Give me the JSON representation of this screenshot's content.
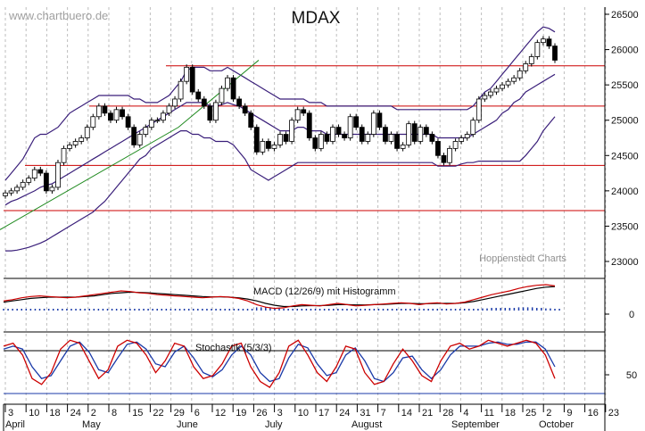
{
  "chart_data": [
    {
      "type": "candlestick",
      "title": "MDAX",
      "watermark": "www.chartbuero.de",
      "credit": "Hoppenstedt Charts",
      "ylim": [
        23000,
        26500
      ],
      "y_ticks": [
        "26500",
        "26000",
        "25500",
        "25000",
        "24500",
        "24000",
        "23500",
        "23000"
      ],
      "x_ticks": [
        "3",
        "10",
        "18",
        "24",
        "2",
        "8",
        "15",
        "22",
        "29",
        "6",
        "12",
        "19",
        "26",
        "3",
        "10",
        "17",
        "24",
        "31",
        "7",
        "14",
        "21",
        "28",
        "4",
        "11",
        "18",
        "25",
        "2",
        "9",
        "16",
        "23"
      ],
      "month_labels": [
        "April",
        "May",
        "June",
        "July",
        "August",
        "September",
        "October"
      ],
      "horizontal_lines": [
        25770,
        25200,
        24360,
        23720
      ],
      "series": [
        {
          "name": "close",
          "values": [
            23970,
            24000,
            24050,
            24120,
            24180,
            24300,
            24250,
            24000,
            24050,
            24400,
            24600,
            24650,
            24700,
            24750,
            24900,
            25050,
            25200,
            25100,
            25000,
            25150,
            25050,
            24900,
            24650,
            24800,
            24900,
            25000,
            25000,
            25100,
            25200,
            25300,
            25550,
            25750,
            25400,
            25300,
            25200,
            25000,
            25250,
            25450,
            25600,
            25300,
            25200,
            25100,
            24900,
            24550,
            24700,
            24600,
            24650,
            24800,
            24700,
            25000,
            25150,
            25100,
            24750,
            24600,
            24800,
            24700,
            24900,
            24800,
            24750,
            25050,
            24900,
            24700,
            24800,
            25100,
            24900,
            24700,
            24800,
            24600,
            24650,
            24950,
            24700,
            24900,
            24800,
            24700,
            24500,
            24400,
            24600,
            24700,
            24750,
            24800,
            25000,
            25300,
            25350,
            25400,
            25450,
            25500,
            25550,
            25600,
            25700,
            25800,
            25900,
            26100,
            26150,
            26050,
            25850
          ]
        },
        {
          "name": "bollinger_upper",
          "values": [
            24150,
            24250,
            24350,
            24450,
            24600,
            24750,
            24800,
            24800,
            24850,
            24900,
            25000,
            25100,
            25150,
            25200,
            25250,
            25300,
            25350,
            25350,
            25350,
            25350,
            25350,
            25350,
            25300,
            25300,
            25250,
            25250,
            25250,
            25300,
            25350,
            25450,
            25550,
            25700,
            25750,
            25750,
            25750,
            25700,
            25700,
            25700,
            25750,
            25700,
            25650,
            25600,
            25550,
            25500,
            25450,
            25400,
            25350,
            25300,
            25300,
            25300,
            25300,
            25300,
            25250,
            25250,
            25250,
            25200,
            25200,
            25200,
            25200,
            25200,
            25200,
            25200,
            25200,
            25200,
            25200,
            25200,
            25200,
            25150,
            25150,
            25150,
            25150,
            25150,
            25150,
            25150,
            25150,
            25150,
            25150,
            25150,
            25150,
            25150,
            25200,
            25300,
            25400,
            25450,
            25550,
            25650,
            25750,
            25850,
            25950,
            26050,
            26150,
            26250,
            26320,
            26300,
            26250
          ]
        },
        {
          "name": "bollinger_middle",
          "values": [
            23800,
            23850,
            23880,
            23920,
            23960,
            24000,
            24050,
            24080,
            24100,
            24150,
            24200,
            24250,
            24300,
            24350,
            24400,
            24450,
            24500,
            24550,
            24600,
            24650,
            24700,
            24750,
            24800,
            24850,
            24900,
            24950,
            25000,
            25050,
            25100,
            25150,
            25200,
            25250,
            25250,
            25250,
            25250,
            25200,
            25200,
            25220,
            25250,
            25220,
            25200,
            25150,
            25100,
            25050,
            25000,
            24950,
            24900,
            24850,
            24850,
            24850,
            24900,
            24900,
            24850,
            24850,
            24850,
            24800,
            24800,
            24800,
            24800,
            24800,
            24800,
            24800,
            24800,
            24800,
            24800,
            24800,
            24800,
            24800,
            24800,
            24800,
            24800,
            24800,
            24800,
            24800,
            24750,
            24750,
            24750,
            24750,
            24750,
            24750,
            24800,
            24850,
            24900,
            24950,
            25000,
            25100,
            25150,
            25250,
            25300,
            25400,
            25450,
            25500,
            25550,
            25600,
            25650
          ]
        },
        {
          "name": "bollinger_lower",
          "values": [
            23150,
            23150,
            23160,
            23180,
            23200,
            23230,
            23260,
            23300,
            23350,
            23400,
            23450,
            23500,
            23550,
            23600,
            23650,
            23700,
            23780,
            23850,
            23950,
            24050,
            24150,
            24250,
            24350,
            24450,
            24500,
            24600,
            24650,
            24700,
            24750,
            24800,
            24850,
            24850,
            24800,
            24800,
            24750,
            24750,
            24700,
            24700,
            24700,
            24650,
            24550,
            24450,
            24300,
            24250,
            24200,
            24150,
            24200,
            24250,
            24300,
            24350,
            24400,
            24400,
            24400,
            24400,
            24400,
            24400,
            24400,
            24400,
            24400,
            24400,
            24400,
            24400,
            24400,
            24400,
            24400,
            24400,
            24400,
            24400,
            24400,
            24400,
            24400,
            24400,
            24400,
            24400,
            24350,
            24350,
            24350,
            24350,
            24380,
            24400,
            24400,
            24420,
            24420,
            24420,
            24420,
            24420,
            24420,
            24420,
            24420,
            24500,
            24600,
            24700,
            24850,
            24950,
            25050
          ]
        },
        {
          "name": "trendline",
          "values": [
            23450,
            24900,
            25850
          ]
        }
      ]
    },
    {
      "type": "line",
      "title": "MACD (12/26/9) mit Histogramm",
      "y_ticks": [
        "0"
      ],
      "series": [
        {
          "name": "macd",
          "values": [
            0.2,
            0.3,
            0.45,
            0.55,
            0.6,
            0.55,
            0.5,
            0.45,
            0.5,
            0.6,
            0.7,
            0.8,
            0.9,
            1.0,
            0.95,
            0.85,
            0.8,
            0.7,
            0.65,
            0.6,
            0.55,
            0.5,
            0.45,
            0.5,
            0.55,
            0.5,
            0.4,
            0.2,
            -0.1,
            -0.3,
            -0.4,
            -0.35,
            -0.2,
            -0.1,
            -0.15,
            -0.2,
            -0.1,
            0,
            -0.1,
            -0.2,
            -0.15,
            -0.1,
            -0.05,
            0,
            0.05,
            0,
            -0.1,
            0,
            0.05,
            -0.05,
            0,
            0.1,
            0.3,
            0.5,
            0.7,
            0.85,
            1.0,
            1.2,
            1.35,
            1.45,
            1.5,
            1.4
          ]
        },
        {
          "name": "signal",
          "values": [
            0.1,
            0.2,
            0.3,
            0.4,
            0.45,
            0.5,
            0.5,
            0.5,
            0.5,
            0.55,
            0.6,
            0.7,
            0.8,
            0.85,
            0.9,
            0.88,
            0.85,
            0.8,
            0.75,
            0.7,
            0.65,
            0.6,
            0.55,
            0.52,
            0.52,
            0.5,
            0.45,
            0.35,
            0.2,
            0,
            -0.15,
            -0.25,
            -0.25,
            -0.2,
            -0.18,
            -0.18,
            -0.15,
            -0.1,
            -0.1,
            -0.12,
            -0.12,
            -0.1,
            -0.08,
            -0.05,
            0,
            0,
            -0.03,
            -0.02,
            0,
            0,
            0,
            0.05,
            0.15,
            0.3,
            0.45,
            0.6,
            0.75,
            0.9,
            1.05,
            1.2,
            1.3,
            1.35
          ]
        }
      ]
    },
    {
      "type": "line",
      "title": "Stochastik (5/3/3)",
      "y_ticks": [
        "50"
      ],
      "series": [
        {
          "name": "%K",
          "values": [
            85,
            90,
            70,
            30,
            20,
            40,
            80,
            95,
            90,
            60,
            30,
            45,
            85,
            95,
            90,
            70,
            40,
            60,
            90,
            85,
            50,
            30,
            35,
            55,
            85,
            90,
            50,
            25,
            15,
            40,
            85,
            95,
            70,
            40,
            25,
            50,
            85,
            80,
            40,
            20,
            25,
            55,
            80,
            60,
            35,
            25,
            60,
            85,
            90,
            80,
            85,
            95,
            90,
            85,
            90,
            95,
            90,
            70,
            30
          ]
        },
        {
          "name": "%D",
          "values": [
            80,
            85,
            80,
            50,
            30,
            35,
            60,
            85,
            92,
            75,
            45,
            40,
            65,
            88,
            92,
            80,
            55,
            50,
            75,
            85,
            65,
            40,
            33,
            45,
            70,
            85,
            70,
            40,
            25,
            30,
            65,
            88,
            82,
            55,
            35,
            40,
            70,
            82,
            60,
            30,
            25,
            40,
            65,
            68,
            45,
            30,
            45,
            70,
            85,
            85,
            85,
            90,
            92,
            88,
            88,
            92,
            92,
            80,
            50
          ]
        }
      ]
    }
  ]
}
